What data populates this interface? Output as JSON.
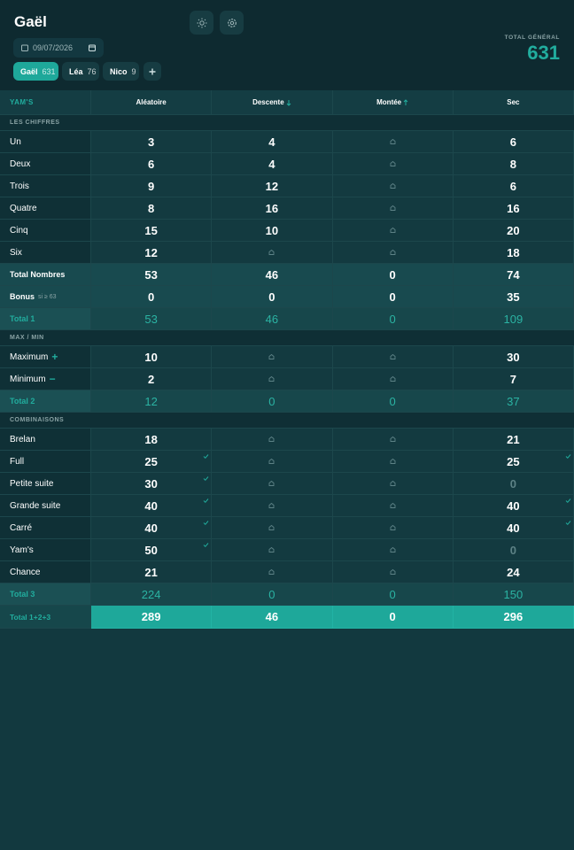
{
  "header": {
    "title": "Gaël",
    "date": "09/07/2026",
    "players": [
      {
        "name": "Gaël",
        "score": 631,
        "active": true
      },
      {
        "name": "Léa",
        "score": 76,
        "active": false
      },
      {
        "name": "Nico",
        "score": 9,
        "active": false
      }
    ],
    "total_label": "TOTAL GÉNÉRAL",
    "total": 631
  },
  "table": {
    "columns": [
      "YAM'S",
      "Aléatoire",
      "Descente",
      "Montée",
      "Sec"
    ],
    "sections": [
      {
        "title": "LES CHIFFRES",
        "rows": [
          {
            "label": "Un",
            "values": [
              3,
              4,
              null,
              6
            ]
          },
          {
            "label": "Deux",
            "values": [
              6,
              4,
              null,
              8
            ]
          },
          {
            "label": "Trois",
            "values": [
              9,
              12,
              null,
              6
            ]
          },
          {
            "label": "Quatre",
            "values": [
              8,
              16,
              null,
              16
            ]
          },
          {
            "label": "Cinq",
            "values": [
              15,
              10,
              null,
              20
            ]
          },
          {
            "label": "Six",
            "values": [
              12,
              null,
              null,
              18
            ]
          },
          {
            "label": "Total Nombres",
            "values": [
              53,
              46,
              0,
              74
            ],
            "kind": "subtotal"
          },
          {
            "label": "Bonus",
            "note": "si ≥ 63",
            "values": [
              0,
              0,
              0,
              35
            ],
            "kind": "subtotal"
          },
          {
            "label": "Total 1",
            "values": [
              53,
              46,
              0,
              109
            ],
            "kind": "total"
          }
        ]
      },
      {
        "title": "MAX / MIN",
        "rows": [
          {
            "label": "Maximum",
            "mark": "+",
            "values": [
              10,
              null,
              null,
              30
            ]
          },
          {
            "label": "Minimum",
            "mark": "−",
            "values": [
              2,
              null,
              null,
              7
            ]
          },
          {
            "label": "Total 2",
            "values": [
              12,
              0,
              0,
              37
            ],
            "kind": "total"
          }
        ]
      },
      {
        "title": "COMBINAISONS",
        "rows": [
          {
            "label": "Brelan",
            "values": [
              18,
              null,
              null,
              21
            ]
          },
          {
            "label": "Full",
            "values": [
              25,
              null,
              null,
              25
            ],
            "checks": [
              true,
              false,
              false,
              true
            ]
          },
          {
            "label": "Petite suite",
            "values": [
              30,
              null,
              null,
              0
            ],
            "checks": [
              true,
              false,
              false,
              false
            ]
          },
          {
            "label": "Grande suite",
            "values": [
              40,
              null,
              null,
              40
            ],
            "checks": [
              true,
              false,
              false,
              true
            ]
          },
          {
            "label": "Carré",
            "values": [
              40,
              null,
              null,
              40
            ],
            "checks": [
              true,
              false,
              false,
              true
            ]
          },
          {
            "label": "Yam's",
            "values": [
              50,
              null,
              null,
              0
            ],
            "checks": [
              true,
              false,
              false,
              false
            ]
          },
          {
            "label": "Chance",
            "values": [
              21,
              null,
              null,
              24
            ]
          },
          {
            "label": "Total 3",
            "values": [
              224,
              0,
              0,
              150
            ],
            "kind": "total"
          }
        ]
      }
    ],
    "grand_total": {
      "label": "Total 1+2+3",
      "values": [
        289,
        46,
        0,
        296
      ]
    }
  }
}
